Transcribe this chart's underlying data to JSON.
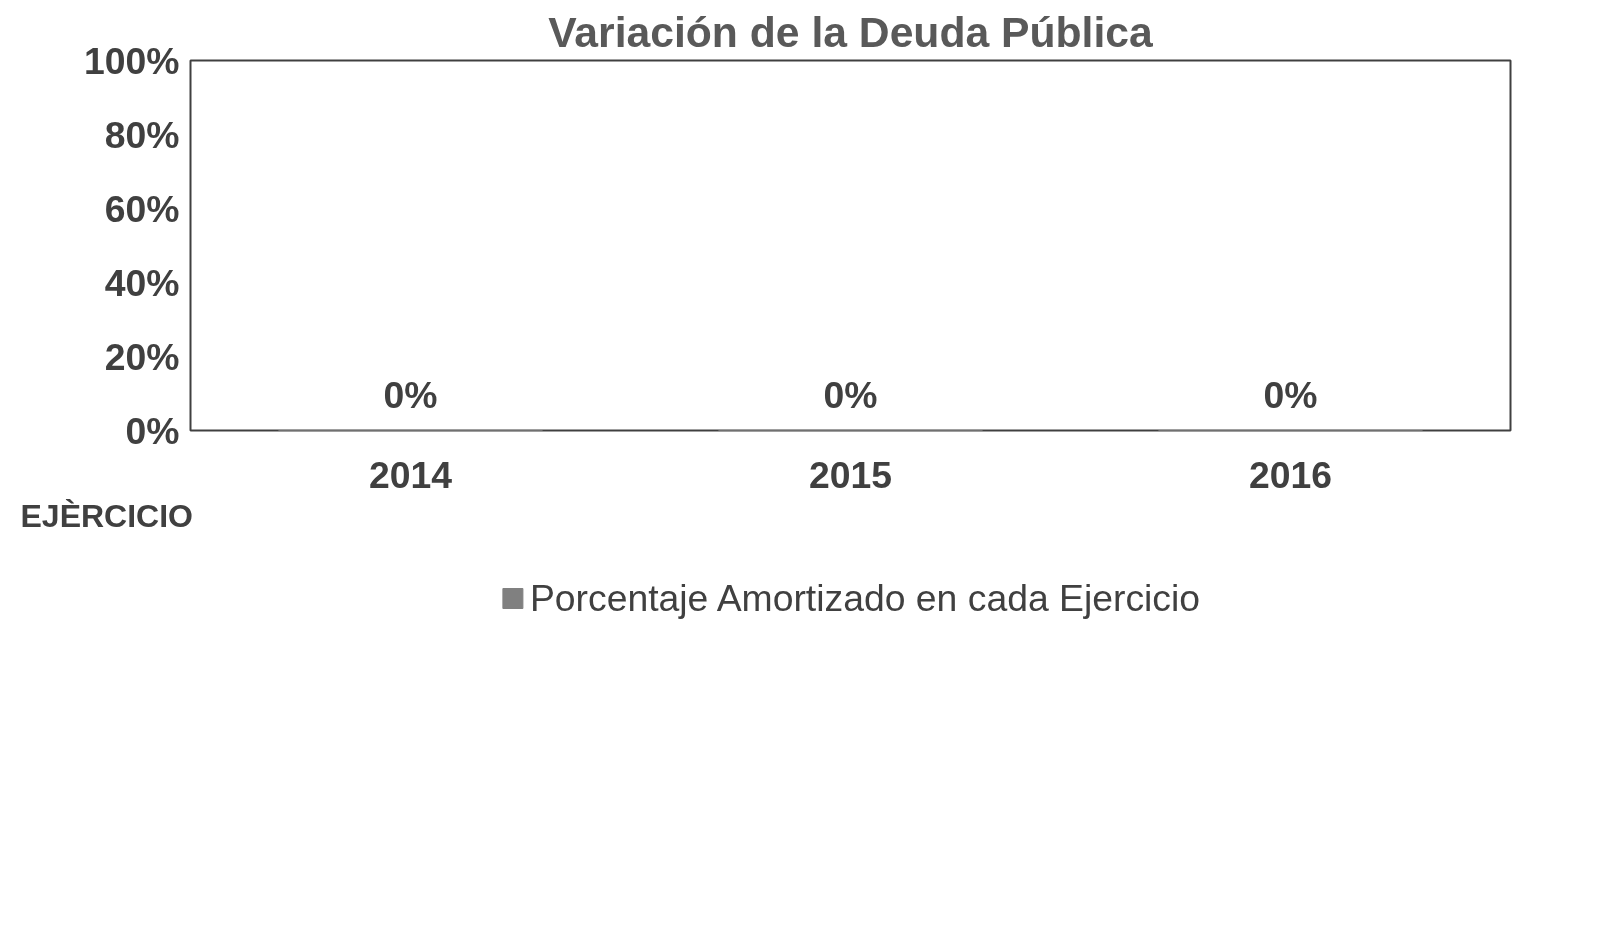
{
  "chart_data": {
    "type": "bar",
    "title": "Variación de la Deuda Pública",
    "xlabel": "EJÈRCICIO",
    "categories": [
      "2014",
      "2015",
      "2016"
    ],
    "series": [
      {
        "name": "Porcentaje Amortizado en cada Ejercicio",
        "color": "#808080",
        "values": [
          0,
          0,
          0
        ],
        "value_labels": [
          "0%",
          "0%",
          "0%"
        ]
      }
    ],
    "ylim": [
      0,
      100
    ],
    "yticks": [
      {
        "value": 0,
        "label": "0%"
      },
      {
        "value": 20,
        "label": "20%"
      },
      {
        "value": 40,
        "label": "40%"
      },
      {
        "value": 60,
        "label": "60%"
      },
      {
        "value": 80,
        "label": "80%"
      },
      {
        "value": 100,
        "label": "100%"
      }
    ],
    "grid": false,
    "legend": "bottom"
  }
}
